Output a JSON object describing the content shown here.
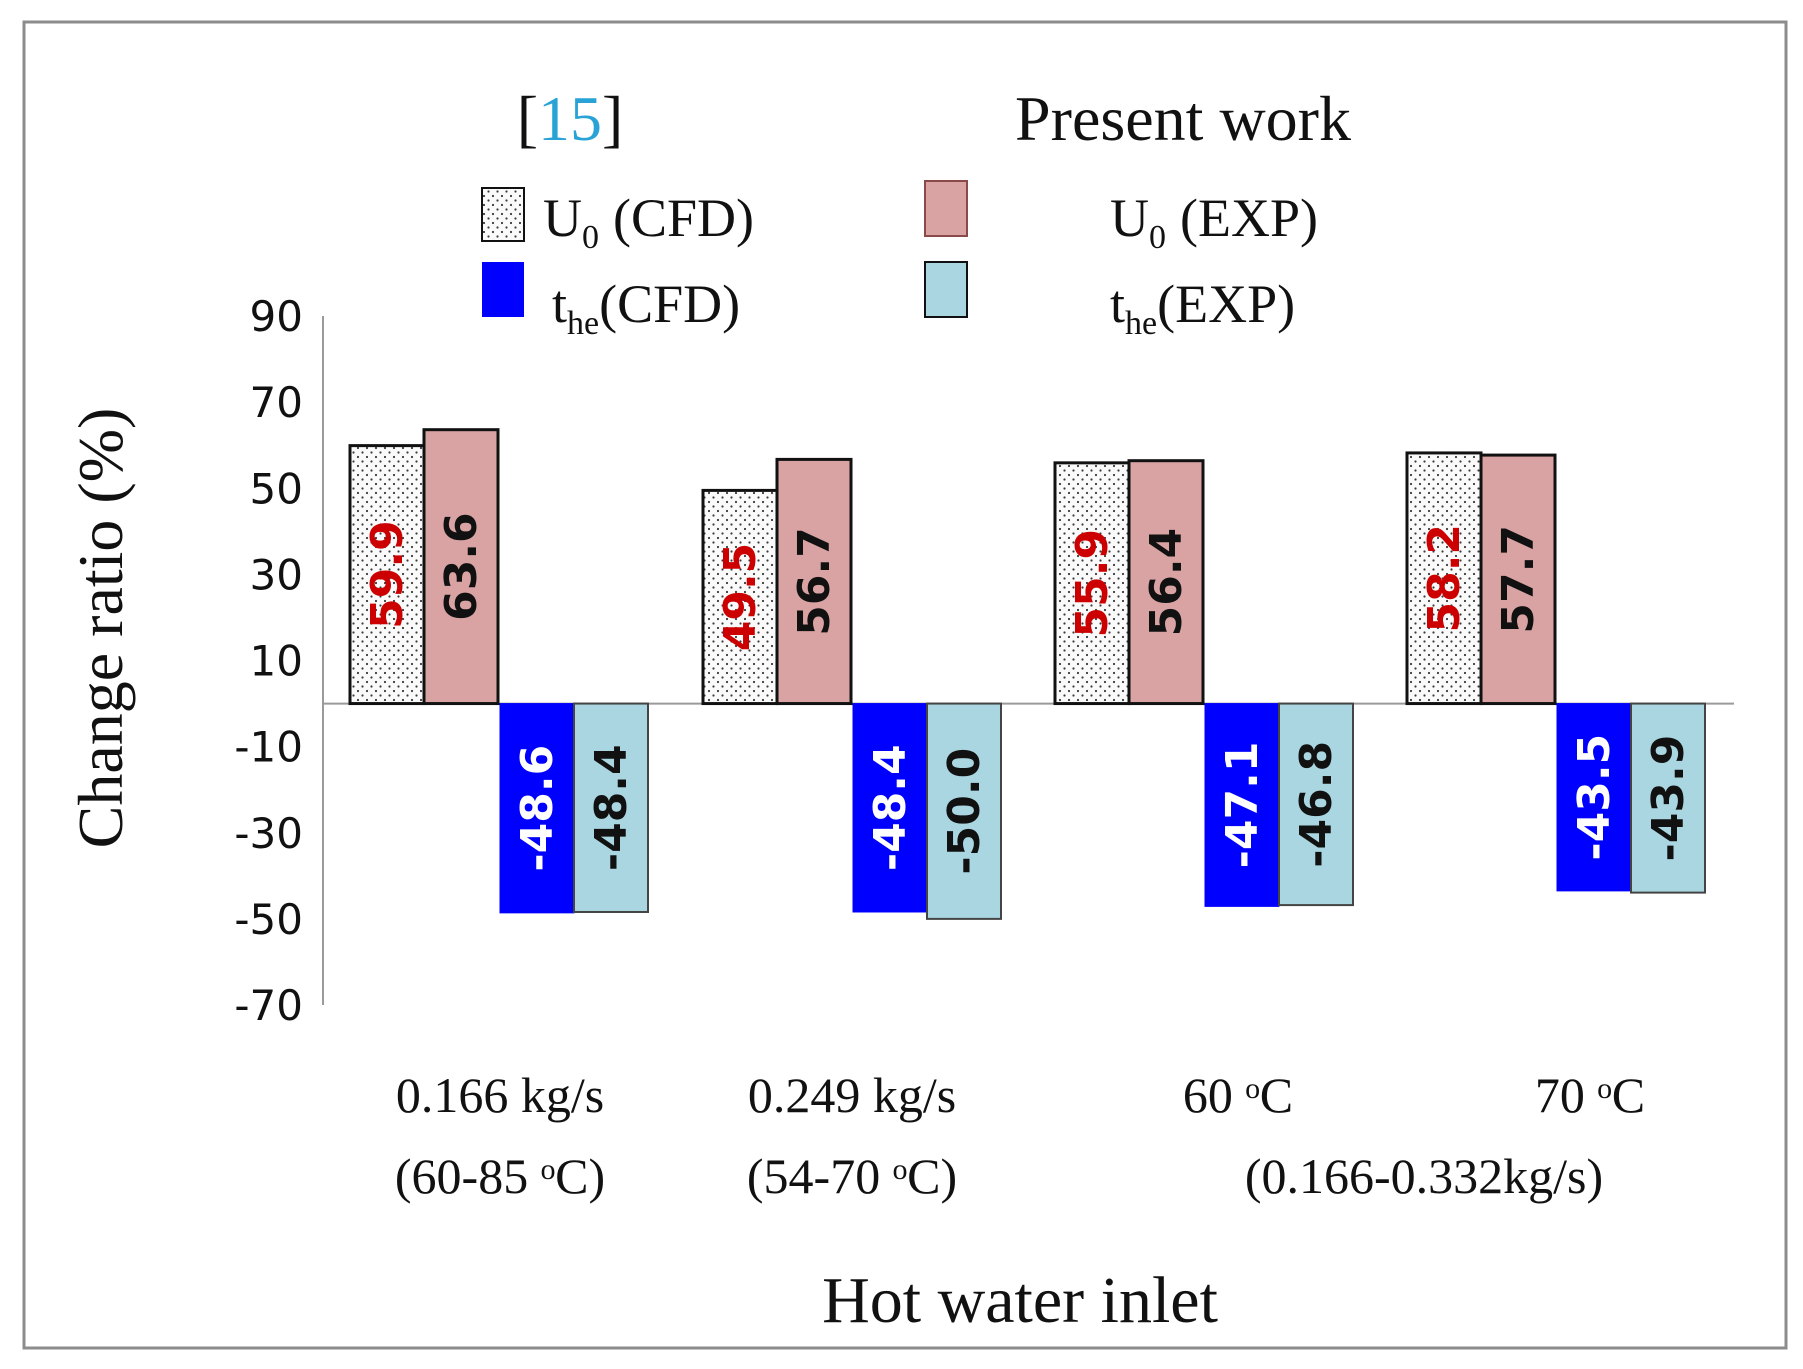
{
  "legend": {
    "col1_header_open": "[",
    "col1_header_ref": "15",
    "col1_header_close": "]",
    "col2_header": "Present work",
    "u0_cfd": {
      "main": "U",
      "sub": "0",
      "suffix": "(CFD)"
    },
    "u0_exp": {
      "main": "U",
      "sub": "0",
      "suffix": "(EXP)"
    },
    "the_cfd": {
      "main": "t",
      "sub": "he",
      "suffix": "(CFD)"
    },
    "the_exp": {
      "main": "t",
      "sub": "he",
      "suffix": "(EXP)"
    }
  },
  "colors": {
    "u0_cfd_fill": "#fafafa",
    "u0_cfd_dots": "#3a3a3a",
    "u0_exp_fill": "#d9a3a3",
    "the_cfd_fill": "#0000ff",
    "the_exp_fill": "#a9d6e1",
    "ref_link": "#29a3d6",
    "label_red": "#cc0000",
    "label_black": "#111111",
    "label_white": "#ffffff"
  },
  "categories_text": [
    {
      "line1": "0.166 kg/s",
      "line2": "(60-85 ᵒC)"
    },
    {
      "line1": "0.249 kg/s",
      "line2": "(54-70 ᵒC)"
    },
    {
      "line1": "60 ᵒC",
      "line2": ""
    },
    {
      "line1": "70 ᵒC",
      "line2": ""
    }
  ],
  "shared_note": "(0.166-0.332kg/s)",
  "chart_data": {
    "type": "bar",
    "title": "",
    "xlabel": "Hot water inlet",
    "ylabel": "Change ratio (%)",
    "ylim": [
      -70,
      90
    ],
    "yticks": [
      90,
      70,
      50,
      30,
      10,
      -10,
      -30,
      -50,
      -70
    ],
    "ytick_labels": [
      "90",
      "70",
      "50",
      "30",
      "10",
      "-10",
      "-30",
      "-50",
      "-70"
    ],
    "grid": false,
    "legend_position": "top",
    "categories": [
      "0.166 kg/s (60-85 ᵒC)",
      "0.249 kg/s (54-70 ᵒC)",
      "60 ᵒC",
      "70 ᵒC"
    ],
    "series": [
      {
        "name": "U0 (CFD)",
        "values": [
          59.9,
          49.5,
          55.9,
          58.2
        ],
        "labels": [
          "59.9",
          "49.5",
          "55.9",
          "58.2"
        ]
      },
      {
        "name": "U0 (EXP)",
        "values": [
          63.6,
          56.7,
          56.4,
          57.7
        ],
        "labels": [
          "63.6",
          "56.7",
          "56.4",
          "57.7"
        ]
      },
      {
        "name": "the(CFD)",
        "values": [
          -48.6,
          -48.4,
          -47.1,
          -43.5
        ],
        "labels": [
          "-48.6",
          "-48.4",
          "-47.1",
          "-43.5"
        ]
      },
      {
        "name": "the(EXP)",
        "values": [
          -48.4,
          -50.0,
          -46.8,
          -43.9
        ],
        "labels": [
          "-48.4",
          "-50.0",
          "-46.8",
          "-43.9"
        ]
      }
    ]
  }
}
